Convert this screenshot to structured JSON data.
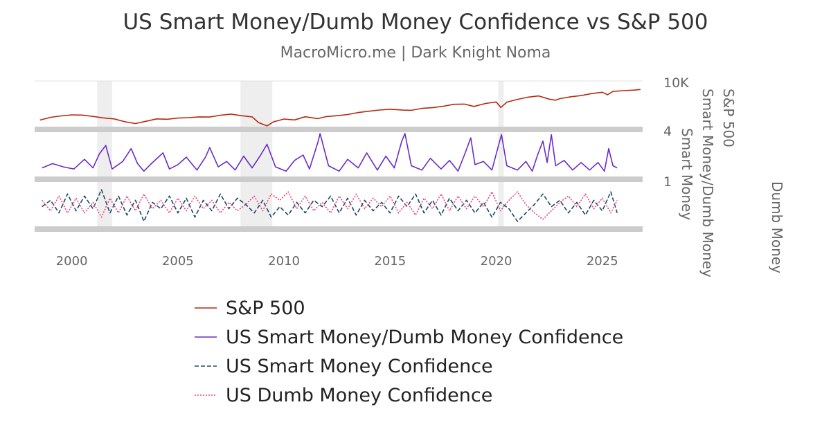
{
  "chart_data": {
    "type": "line",
    "title": "US Smart Money/Dumb Money Confidence vs S&P 500",
    "subtitle": "MacroMicro.me | Dark Knight Noma",
    "x_ticks": [
      "2000",
      "2005",
      "2010",
      "2015",
      "2020",
      "2025"
    ],
    "x_range": [
      1998.25,
      2026.9
    ],
    "recessions": [
      [
        2001.2,
        2001.9
      ],
      [
        2007.95,
        2009.45
      ],
      [
        2020.1,
        2020.35
      ]
    ],
    "panels": [
      {
        "name": "sp500",
        "axis_ticks": [
          "10K"
        ],
        "axis_title": "S&P 500",
        "scale": "log",
        "ylim": [
          700,
          10000
        ]
      },
      {
        "name": "ratio",
        "axis_ticks": [
          "4"
        ],
        "axis_title": "Smart Money/Dumb Money",
        "ylim": [
          0,
          4
        ]
      },
      {
        "name": "confidence",
        "axis_ticks": [
          "1"
        ],
        "axis_titles": [
          "Smart Money",
          "Dumb Money"
        ],
        "ylim": [
          0,
          1
        ]
      }
    ],
    "series": [
      {
        "name": "S&P 500",
        "panel": "sp500",
        "color": "#b5290f",
        "dash": "solid",
        "points": [
          [
            1998.5,
            1050
          ],
          [
            1999.0,
            1250
          ],
          [
            1999.5,
            1360
          ],
          [
            2000.0,
            1450
          ],
          [
            2000.5,
            1430
          ],
          [
            2001.0,
            1320
          ],
          [
            2001.5,
            1200
          ],
          [
            2002.0,
            1130
          ],
          [
            2002.5,
            950
          ],
          [
            2003.0,
            850
          ],
          [
            2003.5,
            980
          ],
          [
            2004.0,
            1130
          ],
          [
            2004.5,
            1110
          ],
          [
            2005.0,
            1190
          ],
          [
            2005.5,
            1220
          ],
          [
            2006.0,
            1280
          ],
          [
            2006.5,
            1270
          ],
          [
            2007.0,
            1420
          ],
          [
            2007.5,
            1520
          ],
          [
            2008.0,
            1380
          ],
          [
            2008.5,
            1280
          ],
          [
            2008.8,
            900
          ],
          [
            2009.2,
            735
          ],
          [
            2009.5,
            940
          ],
          [
            2010.0,
            1120
          ],
          [
            2010.5,
            1060
          ],
          [
            2011.0,
            1290
          ],
          [
            2011.6,
            1150
          ],
          [
            2012.0,
            1310
          ],
          [
            2012.5,
            1380
          ],
          [
            2013.0,
            1480
          ],
          [
            2013.5,
            1680
          ],
          [
            2014.0,
            1820
          ],
          [
            2014.5,
            1960
          ],
          [
            2015.0,
            2060
          ],
          [
            2015.6,
            1950
          ],
          [
            2016.0,
            1930
          ],
          [
            2016.5,
            2170
          ],
          [
            2017.0,
            2270
          ],
          [
            2017.5,
            2470
          ],
          [
            2018.0,
            2800
          ],
          [
            2018.5,
            2830
          ],
          [
            2018.95,
            2450
          ],
          [
            2019.5,
            2950
          ],
          [
            2020.0,
            3230
          ],
          [
            2020.22,
            2300
          ],
          [
            2020.5,
            3200
          ],
          [
            2021.0,
            3800
          ],
          [
            2021.5,
            4350
          ],
          [
            2022.0,
            4700
          ],
          [
            2022.5,
            3850
          ],
          [
            2022.8,
            3600
          ],
          [
            2023.0,
            3980
          ],
          [
            2023.5,
            4450
          ],
          [
            2024.0,
            4800
          ],
          [
            2024.5,
            5450
          ],
          [
            2025.0,
            5900
          ],
          [
            2025.25,
            5050
          ],
          [
            2025.5,
            6200
          ],
          [
            2026.0,
            6500
          ],
          [
            2026.5,
            6750
          ],
          [
            2026.8,
            7000
          ]
        ]
      },
      {
        "name": "US Smart Money/Dumb Money Confidence",
        "panel": "ratio",
        "color": "#6a2bc7",
        "dash": "solid",
        "points": [
          [
            1998.6,
            0.8
          ],
          [
            1999.1,
            1.2
          ],
          [
            1999.6,
            0.9
          ],
          [
            2000.1,
            0.7
          ],
          [
            2000.6,
            1.6
          ],
          [
            2001.0,
            0.8
          ],
          [
            2001.3,
            2.1
          ],
          [
            2001.6,
            2.9
          ],
          [
            2001.9,
            0.7
          ],
          [
            2002.4,
            1.4
          ],
          [
            2002.8,
            2.6
          ],
          [
            2003.1,
            1.2
          ],
          [
            2003.4,
            0.5
          ],
          [
            2003.7,
            1.1
          ],
          [
            2004.3,
            2.2
          ],
          [
            2004.6,
            0.7
          ],
          [
            2005.0,
            1.1
          ],
          [
            2005.4,
            1.8
          ],
          [
            2005.9,
            0.6
          ],
          [
            2006.3,
            1.8
          ],
          [
            2006.5,
            2.7
          ],
          [
            2006.9,
            0.9
          ],
          [
            2007.3,
            1.4
          ],
          [
            2007.7,
            0.6
          ],
          [
            2008.1,
            1.9
          ],
          [
            2008.5,
            0.8
          ],
          [
            2008.9,
            2.0
          ],
          [
            2009.2,
            3.0
          ],
          [
            2009.6,
            0.9
          ],
          [
            2010.1,
            0.5
          ],
          [
            2010.5,
            1.5
          ],
          [
            2010.9,
            2.0
          ],
          [
            2011.2,
            0.7
          ],
          [
            2011.6,
            3.2
          ],
          [
            2011.7,
            4.0
          ],
          [
            2012.1,
            1.0
          ],
          [
            2012.6,
            0.5
          ],
          [
            2013.0,
            1.6
          ],
          [
            2013.5,
            0.8
          ],
          [
            2013.9,
            2.2
          ],
          [
            2014.4,
            0.6
          ],
          [
            2014.8,
            1.9
          ],
          [
            2015.2,
            0.8
          ],
          [
            2015.55,
            3.3
          ],
          [
            2015.7,
            4.0
          ],
          [
            2016.0,
            1.0
          ],
          [
            2016.5,
            0.6
          ],
          [
            2016.9,
            1.7
          ],
          [
            2017.4,
            0.7
          ],
          [
            2017.8,
            1.5
          ],
          [
            2018.2,
            0.5
          ],
          [
            2018.5,
            2.0
          ],
          [
            2018.8,
            3.6
          ],
          [
            2019.0,
            1.1
          ],
          [
            2019.4,
            1.4
          ],
          [
            2019.8,
            0.6
          ],
          [
            2020.15,
            3.2
          ],
          [
            2020.25,
            3.9
          ],
          [
            2020.5,
            1.0
          ],
          [
            2021.0,
            0.6
          ],
          [
            2021.4,
            1.4
          ],
          [
            2021.7,
            0.5
          ],
          [
            2021.95,
            2.0
          ],
          [
            2022.2,
            3.3
          ],
          [
            2022.4,
            1.3
          ],
          [
            2022.6,
            3.9
          ],
          [
            2022.8,
            1.0
          ],
          [
            2023.2,
            1.5
          ],
          [
            2023.6,
            0.6
          ],
          [
            2024.0,
            1.3
          ],
          [
            2024.4,
            0.6
          ],
          [
            2024.8,
            1.3
          ],
          [
            2025.1,
            0.5
          ],
          [
            2025.3,
            2.6
          ],
          [
            2025.5,
            1.0
          ],
          [
            2025.7,
            0.8
          ]
        ]
      },
      {
        "name": "US Smart Money Confidence",
        "panel": "confidence",
        "color": "#1b4866",
        "dash": "6 3",
        "points": [
          [
            1998.6,
            0.45
          ],
          [
            1999.0,
            0.6
          ],
          [
            1999.4,
            0.3
          ],
          [
            1999.8,
            0.75
          ],
          [
            2000.2,
            0.35
          ],
          [
            2000.6,
            0.7
          ],
          [
            2001.0,
            0.4
          ],
          [
            2001.4,
            0.85
          ],
          [
            2001.8,
            0.3
          ],
          [
            2002.2,
            0.7
          ],
          [
            2002.6,
            0.25
          ],
          [
            2003.0,
            0.6
          ],
          [
            2003.4,
            0.1
          ],
          [
            2003.8,
            0.55
          ],
          [
            2004.2,
            0.4
          ],
          [
            2004.6,
            0.7
          ],
          [
            2005.0,
            0.3
          ],
          [
            2005.4,
            0.65
          ],
          [
            2005.8,
            0.2
          ],
          [
            2006.2,
            0.6
          ],
          [
            2006.6,
            0.35
          ],
          [
            2007.0,
            0.75
          ],
          [
            2007.4,
            0.4
          ],
          [
            2007.8,
            0.65
          ],
          [
            2008.2,
            0.5
          ],
          [
            2008.6,
            0.3
          ],
          [
            2009.0,
            0.6
          ],
          [
            2009.4,
            0.2
          ],
          [
            2009.8,
            0.45
          ],
          [
            2010.2,
            0.25
          ],
          [
            2010.6,
            0.55
          ],
          [
            2011.0,
            0.3
          ],
          [
            2011.4,
            0.6
          ],
          [
            2011.8,
            0.45
          ],
          [
            2012.2,
            0.7
          ],
          [
            2012.6,
            0.3
          ],
          [
            2013.0,
            0.65
          ],
          [
            2013.4,
            0.25
          ],
          [
            2013.8,
            0.6
          ],
          [
            2014.2,
            0.35
          ],
          [
            2014.6,
            0.55
          ],
          [
            2015.0,
            0.3
          ],
          [
            2015.4,
            0.7
          ],
          [
            2015.8,
            0.45
          ],
          [
            2016.2,
            0.75
          ],
          [
            2016.6,
            0.3
          ],
          [
            2017.0,
            0.6
          ],
          [
            2017.4,
            0.25
          ],
          [
            2017.8,
            0.65
          ],
          [
            2018.2,
            0.35
          ],
          [
            2018.6,
            0.6
          ],
          [
            2019.0,
            0.3
          ],
          [
            2019.4,
            0.55
          ],
          [
            2019.8,
            0.2
          ],
          [
            2020.2,
            0.55
          ],
          [
            2020.6,
            0.4
          ],
          [
            2021.0,
            0.1
          ],
          [
            2021.4,
            0.3
          ],
          [
            2021.8,
            0.5
          ],
          [
            2022.2,
            0.75
          ],
          [
            2022.6,
            0.45
          ],
          [
            2023.0,
            0.6
          ],
          [
            2023.4,
            0.3
          ],
          [
            2023.8,
            0.55
          ],
          [
            2024.2,
            0.25
          ],
          [
            2024.6,
            0.6
          ],
          [
            2025.0,
            0.35
          ],
          [
            2025.4,
            0.8
          ],
          [
            2025.7,
            0.3
          ]
        ]
      },
      {
        "name": "US Dumb Money Confidence",
        "panel": "confidence",
        "color": "#e8457e",
        "dash": "2 2",
        "points": [
          [
            1998.6,
            0.6
          ],
          [
            1999.0,
            0.35
          ],
          [
            1999.4,
            0.7
          ],
          [
            1999.8,
            0.3
          ],
          [
            2000.2,
            0.65
          ],
          [
            2000.6,
            0.3
          ],
          [
            2001.0,
            0.55
          ],
          [
            2001.4,
            0.2
          ],
          [
            2001.8,
            0.65
          ],
          [
            2002.2,
            0.3
          ],
          [
            2002.6,
            0.7
          ],
          [
            2003.0,
            0.35
          ],
          [
            2003.4,
            0.75
          ],
          [
            2003.8,
            0.4
          ],
          [
            2004.2,
            0.6
          ],
          [
            2004.6,
            0.3
          ],
          [
            2005.0,
            0.65
          ],
          [
            2005.4,
            0.35
          ],
          [
            2005.8,
            0.7
          ],
          [
            2006.2,
            0.4
          ],
          [
            2006.6,
            0.6
          ],
          [
            2007.0,
            0.3
          ],
          [
            2007.4,
            0.55
          ],
          [
            2007.8,
            0.35
          ],
          [
            2008.2,
            0.5
          ],
          [
            2008.6,
            0.7
          ],
          [
            2009.0,
            0.35
          ],
          [
            2009.4,
            0.75
          ],
          [
            2009.8,
            0.6
          ],
          [
            2010.2,
            0.8
          ],
          [
            2010.6,
            0.4
          ],
          [
            2011.0,
            0.7
          ],
          [
            2011.4,
            0.35
          ],
          [
            2011.8,
            0.55
          ],
          [
            2012.2,
            0.3
          ],
          [
            2012.6,
            0.7
          ],
          [
            2013.0,
            0.4
          ],
          [
            2013.4,
            0.75
          ],
          [
            2013.8,
            0.4
          ],
          [
            2014.2,
            0.65
          ],
          [
            2014.6,
            0.45
          ],
          [
            2015.0,
            0.7
          ],
          [
            2015.4,
            0.3
          ],
          [
            2015.8,
            0.55
          ],
          [
            2016.2,
            0.25
          ],
          [
            2016.6,
            0.65
          ],
          [
            2017.0,
            0.4
          ],
          [
            2017.4,
            0.75
          ],
          [
            2017.8,
            0.35
          ],
          [
            2018.2,
            0.7
          ],
          [
            2018.6,
            0.4
          ],
          [
            2019.0,
            0.7
          ],
          [
            2019.4,
            0.45
          ],
          [
            2019.8,
            0.8
          ],
          [
            2020.2,
            0.35
          ],
          [
            2020.6,
            0.6
          ],
          [
            2021.0,
            0.8
          ],
          [
            2021.4,
            0.5
          ],
          [
            2021.8,
            0.3
          ],
          [
            2022.2,
            0.15
          ],
          [
            2022.6,
            0.35
          ],
          [
            2023.0,
            0.55
          ],
          [
            2023.4,
            0.7
          ],
          [
            2023.8,
            0.45
          ],
          [
            2024.2,
            0.75
          ],
          [
            2024.6,
            0.4
          ],
          [
            2025.0,
            0.65
          ],
          [
            2025.4,
            0.3
          ],
          [
            2025.7,
            0.6
          ]
        ]
      }
    ],
    "legend_position": "bottom"
  }
}
